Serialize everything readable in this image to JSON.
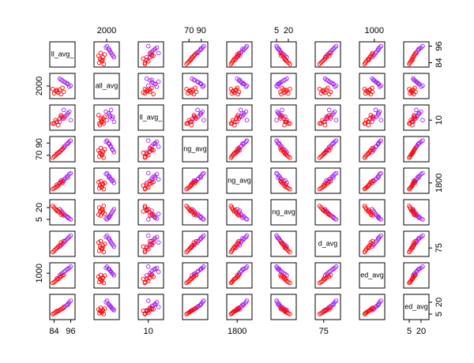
{
  "chart_data": {
    "type": "pairs",
    "variables": [
      {
        "label": "ll_avg_",
        "lim": [
          82,
          98
        ],
        "ticks": [
          84,
          96
        ]
      },
      {
        "label": "all_avg",
        "lim": [
          1700,
          2300
        ],
        "ticks": [
          2000
        ]
      },
      {
        "label": "ll_avg_",
        "lim": [
          5,
          18
        ],
        "ticks": [
          10
        ]
      },
      {
        "label": "ng_avg",
        "lim": [
          62,
          98
        ],
        "ticks": [
          70,
          90
        ]
      },
      {
        "label": "ng_avg",
        "lim": [
          1700,
          1950
        ],
        "ticks": [
          1800
        ]
      },
      {
        "label": "ng_avg",
        "lim": [
          0,
          28
        ],
        "ticks": [
          5,
          20
        ]
      },
      {
        "label": "d_avg",
        "lim": [
          70,
          86
        ],
        "ticks": [
          75
        ]
      },
      {
        "label": "ed_avg",
        "lim": [
          700,
          1200
        ],
        "ticks": [
          1000
        ]
      },
      {
        "label": "ed_avg",
        "lim": [
          0,
          28
        ],
        "ticks": [
          5,
          20
        ]
      }
    ],
    "series": [
      {
        "color": "#a020f0",
        "values": [
          [
            92,
            94,
            90,
            95,
            88,
            93,
            91,
            96,
            89,
            94
          ],
          [
            2100,
            2050,
            2150,
            1980,
            2200,
            2080,
            2120,
            2010,
            2170,
            2060
          ],
          [
            12,
            14,
            11,
            15,
            9,
            13,
            16,
            10,
            12,
            14
          ],
          [
            85,
            90,
            80,
            92,
            75,
            88,
            84,
            94,
            78,
            89
          ],
          [
            1850,
            1880,
            1820,
            1900,
            1800,
            1870,
            1840,
            1910,
            1830,
            1860
          ],
          [
            10,
            8,
            14,
            6,
            18,
            9,
            12,
            5,
            16,
            7
          ],
          [
            80,
            82,
            78,
            83,
            76,
            81,
            79,
            84,
            77,
            82
          ],
          [
            1050,
            1100,
            1000,
            1120,
            950,
            1080,
            1030,
            1150,
            980,
            1090
          ],
          [
            15,
            18,
            12,
            20,
            10,
            16,
            14,
            22,
            11,
            17
          ]
        ]
      },
      {
        "color": "#ff0000",
        "values": [
          [
            86,
            88,
            84,
            90,
            87,
            85,
            89,
            83,
            91,
            86
          ],
          [
            1850,
            1900,
            1800,
            1950,
            1820,
            1870,
            1780,
            1920,
            1840,
            1890
          ],
          [
            9,
            11,
            8,
            12,
            7,
            10,
            13,
            8,
            11,
            9
          ],
          [
            72,
            76,
            68,
            80,
            74,
            70,
            78,
            66,
            82,
            73
          ],
          [
            1760,
            1790,
            1740,
            1800,
            1770,
            1750,
            1810,
            1730,
            1820,
            1780
          ],
          [
            16,
            14,
            20,
            12,
            15,
            18,
            11,
            22,
            10,
            17
          ],
          [
            75,
            77,
            73,
            78,
            76,
            74,
            79,
            72,
            80,
            75
          ],
          [
            850,
            900,
            800,
            950,
            870,
            820,
            920,
            780,
            960,
            880
          ],
          [
            8,
            10,
            6,
            12,
            9,
            7,
            11,
            5,
            13,
            9
          ]
        ]
      }
    ]
  }
}
